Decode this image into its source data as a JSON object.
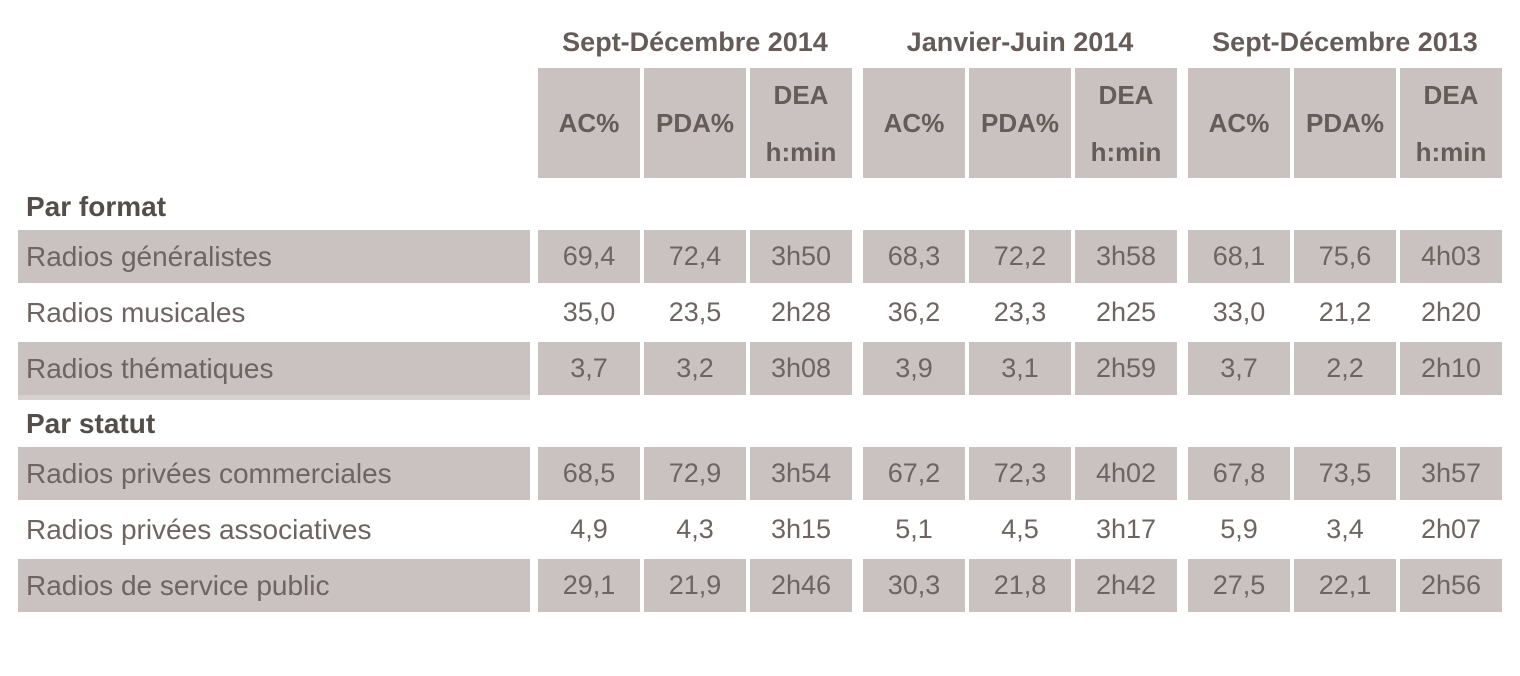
{
  "table": {
    "period_groups": [
      {
        "label": "Sept-Décembre 2014"
      },
      {
        "label": "Janvier-Juin 2014"
      },
      {
        "label": "Sept-Décembre 2013"
      }
    ],
    "column_headers": {
      "ac": "AC%",
      "pda": "PDA%",
      "dea_line1": "DEA",
      "dea_line2": "h:min"
    },
    "sections": [
      {
        "title": "Par format",
        "rows": [
          {
            "label": "Radios généralistes",
            "values": [
              "69,4",
              "72,4",
              "3h50",
              "68,3",
              "72,2",
              "3h58",
              "68,1",
              "75,6",
              "4h03"
            ]
          },
          {
            "label": "Radios musicales",
            "values": [
              "35,0",
              "23,5",
              "2h28",
              "36,2",
              "23,3",
              "2h25",
              "33,0",
              "21,2",
              "2h20"
            ]
          },
          {
            "label": "Radios thématiques",
            "values": [
              "3,7",
              "3,2",
              "3h08",
              "3,9",
              "3,1",
              "2h59",
              "3,7",
              "2,2",
              "2h10"
            ]
          }
        ]
      },
      {
        "title": "Par statut",
        "rows": [
          {
            "label": "Radios privées commerciales",
            "values": [
              "68,5",
              "72,9",
              "3h54",
              "67,2",
              "72,3",
              "4h02",
              "67,8",
              "73,5",
              "3h57"
            ]
          },
          {
            "label": "Radios privées associatives",
            "values": [
              "4,9",
              "4,3",
              "3h15",
              "5,1",
              "4,5",
              "3h17",
              "5,9",
              "3,4",
              "2h07"
            ]
          },
          {
            "label": "Radios de service public",
            "values": [
              "29,1",
              "21,9",
              "2h46",
              "30,3",
              "21,8",
              "2h42",
              "27,5",
              "22,1",
              "2h56"
            ]
          }
        ]
      }
    ],
    "colors": {
      "cell_background": "#c9c2c0",
      "data_text": "#6e6461",
      "header_text": "#655c59",
      "section_text": "#544e4a"
    }
  }
}
